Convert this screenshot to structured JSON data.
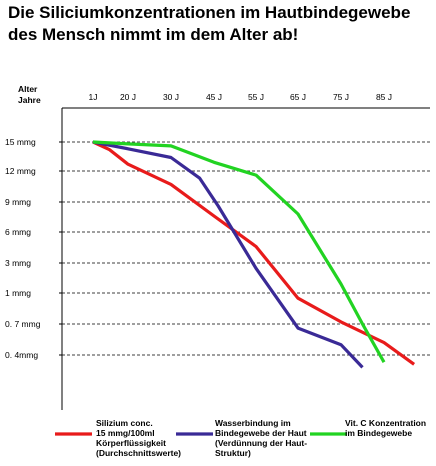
{
  "title_line1": "Die Siliciumkonzentrationen im Hautbindegewebe",
  "title_line2": "des Mensch nimmt im dem Alter ab!",
  "colors": {
    "red": "#e81b1b",
    "blue": "#3a2a96",
    "green": "#22d322",
    "axis": "#000000"
  },
  "chart_data": {
    "type": "line",
    "xlabel": "Alter Jahre",
    "xlabel_line1": "Alter",
    "xlabel_line2": "Jahre",
    "x_tick_labels": [
      "1J",
      "20 J",
      "30 J",
      "45 J",
      "55 J",
      "65 J",
      "75 J",
      "85 J"
    ],
    "x_ticks": [
      1,
      20,
      30,
      45,
      55,
      65,
      75,
      85
    ],
    "y_tick_labels": [
      "15 mmg",
      "12 mmg",
      "9 mmg",
      "6 mmg",
      "3 mmg",
      "1 mmg",
      "0. 7 mmg",
      "0. 4mmg"
    ],
    "y_scale": "categorical-ordinal (top = highest)",
    "grid": "dashed horizontal lines",
    "legend_position": "bottom",
    "series": [
      {
        "name": "Silizium conc. 15 mmg/100ml Körperflüssigkeit (Durchschnittswerte)",
        "legend_lines": [
          "Silizium conc.",
          "15 mmg/100ml",
          "Körperflüssigkeit",
          "(Durchschnittswerte)"
        ],
        "color": "#e81b1b",
        "x": [
          1,
          10,
          20,
          30,
          45,
          55,
          65,
          75,
          85,
          92
        ],
        "y": [
          15,
          14.2,
          12.7,
          10.7,
          7.6,
          4.6,
          0.95,
          0.72,
          0.52,
          0.31
        ]
      },
      {
        "name": "Wasserbindung im Bindegewebe der Haut (Verdünnung der Haut-Struktur)",
        "legend_lines": [
          "Wasserbindung im",
          "Bindegewebe der Haut",
          "(Verdünnung der Haut-",
          "Struktur)"
        ],
        "color": "#3a2a96",
        "x": [
          1,
          20,
          30,
          40,
          46,
          55,
          65,
          75,
          80
        ],
        "y": [
          15,
          14.3,
          13.4,
          11.3,
          8.6,
          2.65,
          0.66,
          0.5,
          0.28
        ]
      },
      {
        "name": "Vit. C Konzentration im Bindegewebe",
        "legend_lines": [
          "Vit. C Konzentration",
          "im Bindegewebe"
        ],
        "color": "#22d322",
        "x": [
          1,
          20,
          30,
          45,
          55,
          65,
          75,
          80,
          85
        ],
        "y": [
          15,
          14.8,
          14.6,
          12.9,
          11.6,
          7.8,
          1.6,
          0.7,
          0.33
        ]
      }
    ]
  }
}
